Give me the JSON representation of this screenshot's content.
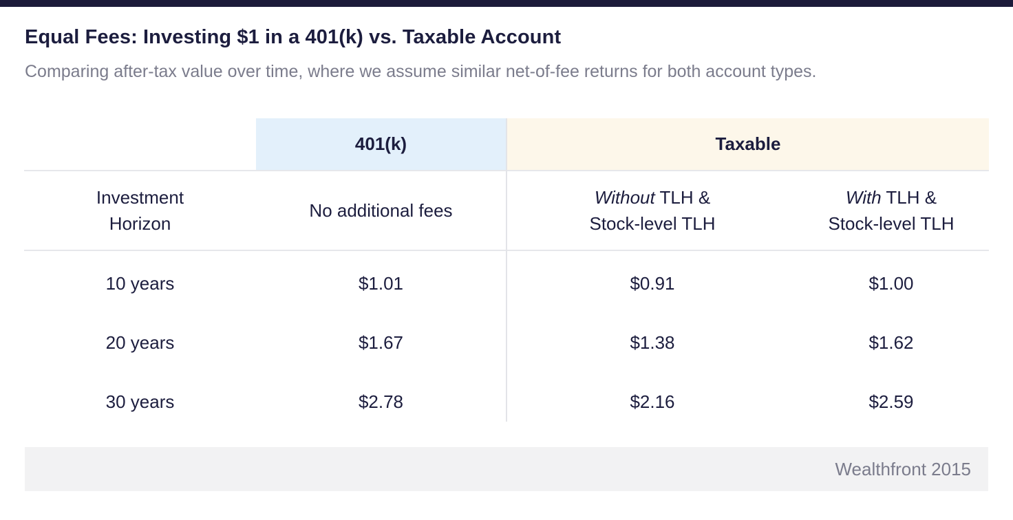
{
  "title": "Equal Fees: Investing $1 in a 401(k) vs. Taxable Account",
  "subtitle": "Comparing after-tax value over time, where we assume similar net-of-fee returns for both account types.",
  "table": {
    "groups": {
      "k401": "401(k)",
      "taxable": "Taxable"
    },
    "subheaders": {
      "horizon_line1": "Investment",
      "horizon_line2": "Horizon",
      "no_fees": "No additional fees",
      "without_em": "Without",
      "without_rest": " TLH &",
      "without_line2": "Stock-level TLH",
      "with_em": "With",
      "with_rest": " TLH &",
      "with_line2": "Stock-level TLH"
    },
    "rows": [
      {
        "horizon": "10 years",
        "k401": "$1.01",
        "without": "$0.91",
        "with": "$1.00"
      },
      {
        "horizon": "20 years",
        "k401": "$1.67",
        "without": "$1.38",
        "with": "$1.62"
      },
      {
        "horizon": "30 years",
        "k401": "$2.78",
        "without": "$2.16",
        "with": "$2.59"
      }
    ]
  },
  "footer": {
    "source": "Wealthfront 2015"
  },
  "colors": {
    "top_bar": "#1c1b3a",
    "k401_header_bg": "#e3f0fb",
    "taxable_header_bg": "#fdf7ea",
    "footer_bg": "#f2f2f3"
  }
}
